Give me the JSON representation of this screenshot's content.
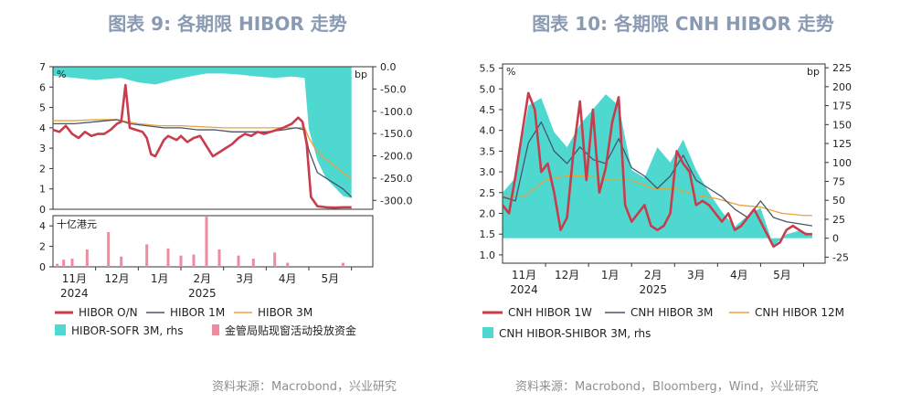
{
  "charts": [
    {
      "title": "图表 9:  各期限 HIBOR 走势",
      "source": "资料来源：Macrobond，兴业研究",
      "left_unit": "%",
      "right_unit": "bp",
      "bottom_unit": "十亿港元",
      "x_months": [
        "11月",
        "12月",
        "1月",
        "2月",
        "3月",
        "4月",
        "5月"
      ],
      "x_years": [
        "2024",
        "2025"
      ],
      "left_ticks": [
        "0",
        "1",
        "2",
        "3",
        "4",
        "5",
        "6",
        "7"
      ],
      "right_ticks": [
        "0.0",
        "-50.0",
        "-100.0",
        "-150.0",
        "-200.0",
        "-250.0",
        "-300.0"
      ],
      "bottom_ticks": [
        "0",
        "2",
        "4"
      ],
      "legend": [
        "HIBOR O/N",
        "HIBOR 1M",
        "HIBOR 3M",
        "HIBOR-SOFR 3M, rhs",
        "金管局贴现窗活动投放资金"
      ],
      "colors": {
        "on": "#c83c4c",
        "m1": "#4a5568",
        "m3": "#e8a23a",
        "spread": "#4ed8cf",
        "bar": "#f08aa0"
      }
    },
    {
      "title": "图表 10: 各期限 CNH HIBOR 走势",
      "source": "资料来源：Macrobond，Bloomberg，Wind，兴业研究",
      "left_unit": "%",
      "right_unit": "bp",
      "x_months": [
        "11月",
        "12月",
        "1月",
        "2月",
        "3月",
        "4月",
        "5月"
      ],
      "x_years": [
        "2024",
        "2025"
      ],
      "left_ticks": [
        "1.0",
        "1.5",
        "2.0",
        "2.5",
        "3.0",
        "3.5",
        "4.0",
        "4.5",
        "5.0",
        "5.5"
      ],
      "right_ticks": [
        "-25",
        "0",
        "25",
        "50",
        "75",
        "100",
        "125",
        "150",
        "175",
        "200",
        "225"
      ],
      "legend": [
        "CNH HIBOR 1W",
        "CNH HIBOR 3M",
        "CNH HIBOR 12M",
        "CNH HIBOR-SHIBOR 3M, rhs"
      ],
      "colors": {
        "w1": "#c83c4c",
        "m3": "#4a5568",
        "m12": "#e8a23a",
        "spread": "#4ed8cf"
      }
    }
  ],
  "chart_data": [
    {
      "type": "line",
      "x_unit": "months since 2024-10-20",
      "x_range": [
        0,
        7.5
      ],
      "ylim_left": [
        0,
        7
      ],
      "ylim_right": [
        -320,
        0
      ],
      "ylim_bottom": [
        0,
        5
      ],
      "series": [
        {
          "name": "HIBOR O/N",
          "axis": "left",
          "x": [
            0,
            0.15,
            0.3,
            0.45,
            0.6,
            0.75,
            0.9,
            1.05,
            1.2,
            1.35,
            1.5,
            1.6,
            1.7,
            1.8,
            1.95,
            2.1,
            2.2,
            2.3,
            2.4,
            2.5,
            2.6,
            2.7,
            2.8,
            2.9,
            3.0,
            3.15,
            3.3,
            3.45,
            3.6,
            3.75,
            3.9,
            4.05,
            4.2,
            4.35,
            4.5,
            4.65,
            4.8,
            4.95,
            5.1,
            5.25,
            5.4,
            5.5,
            5.6,
            5.75,
            5.85,
            5.95,
            6.05,
            6.2,
            6.4,
            6.6,
            6.8,
            7.0
          ],
          "y": [
            3.9,
            3.8,
            4.1,
            3.7,
            3.5,
            3.8,
            3.6,
            3.7,
            3.7,
            3.9,
            4.2,
            4.3,
            6.1,
            4.0,
            3.9,
            3.8,
            3.5,
            2.7,
            2.6,
            3.0,
            3.4,
            3.6,
            3.5,
            3.4,
            3.6,
            3.3,
            3.5,
            3.6,
            3.1,
            2.6,
            2.8,
            3.0,
            3.2,
            3.5,
            3.7,
            3.6,
            3.8,
            3.7,
            3.8,
            3.9,
            4.0,
            4.1,
            4.2,
            4.5,
            4.3,
            3.2,
            0.6,
            0.15,
            0.1,
            0.08,
            0.1,
            0.1
          ]
        },
        {
          "name": "HIBOR 1M",
          "axis": "left",
          "x": [
            0,
            0.5,
            1.0,
            1.5,
            1.8,
            2.2,
            2.6,
            3.0,
            3.4,
            3.8,
            4.2,
            4.6,
            5.0,
            5.4,
            5.7,
            5.9,
            6.0,
            6.2,
            6.5,
            6.8,
            7.0
          ],
          "y": [
            4.2,
            4.2,
            4.3,
            4.4,
            4.2,
            4.1,
            4.0,
            4.0,
            3.9,
            3.9,
            3.8,
            3.8,
            3.8,
            3.9,
            4.0,
            3.9,
            2.9,
            1.8,
            1.4,
            1.0,
            0.6
          ]
        },
        {
          "name": "HIBOR 3M",
          "axis": "left",
          "x": [
            0,
            0.5,
            1.0,
            1.5,
            2.0,
            2.5,
            3.0,
            3.5,
            4.0,
            4.5,
            5.0,
            5.5,
            5.9,
            6.0,
            6.2,
            6.5,
            6.8,
            7.0
          ],
          "y": [
            4.35,
            4.35,
            4.4,
            4.4,
            4.2,
            4.1,
            4.1,
            4.05,
            4.0,
            4.0,
            4.0,
            4.0,
            4.0,
            3.5,
            2.8,
            2.3,
            1.8,
            1.5
          ]
        },
        {
          "name": "HIBOR-SOFR 3M, rhs",
          "axis": "right",
          "type": "area",
          "x": [
            0,
            0.5,
            1.0,
            1.2,
            1.6,
            2.0,
            2.4,
            2.8,
            3.2,
            3.6,
            4.0,
            4.4,
            4.8,
            5.2,
            5.6,
            5.9,
            6.0,
            6.2,
            6.4,
            6.6,
            6.8,
            7.0
          ],
          "y": [
            -20,
            -25,
            -30,
            -28,
            -25,
            -35,
            -40,
            -30,
            -22,
            -15,
            -15,
            -18,
            -22,
            -25,
            -22,
            -25,
            -140,
            -210,
            -250,
            -270,
            -290,
            -295
          ]
        },
        {
          "name": "金管局贴现窗活动投放资金",
          "axis": "bottom",
          "type": "bar",
          "x": [
            0.1,
            0.25,
            0.45,
            0.8,
            1.3,
            1.6,
            2.2,
            2.7,
            3.0,
            3.3,
            3.6,
            3.9,
            4.35,
            4.7,
            5.2,
            5.5,
            6.8
          ],
          "y": [
            0.3,
            0.7,
            0.8,
            1.7,
            3.4,
            1.0,
            2.2,
            1.8,
            1.1,
            1.2,
            4.9,
            1.7,
            1.1,
            0.8,
            1.4,
            0.4,
            0.4
          ]
        }
      ]
    },
    {
      "type": "line",
      "x_unit": "months since 2024-10-20",
      "x_range": [
        0,
        7.5
      ],
      "ylim_left": [
        0.8,
        5.6
      ],
      "ylim_right": [
        -33,
        230
      ],
      "series": [
        {
          "name": "CNH HIBOR 1W",
          "axis": "left",
          "x": [
            0,
            0.15,
            0.3,
            0.45,
            0.6,
            0.75,
            0.9,
            1.05,
            1.2,
            1.35,
            1.5,
            1.65,
            1.8,
            1.95,
            2.1,
            2.25,
            2.4,
            2.55,
            2.7,
            2.85,
            3.0,
            3.15,
            3.3,
            3.45,
            3.6,
            3.75,
            3.9,
            4.05,
            4.2,
            4.35,
            4.5,
            4.65,
            4.8,
            4.95,
            5.1,
            5.25,
            5.4,
            5.55,
            5.7,
            5.85,
            6.0,
            6.15,
            6.3,
            6.45,
            6.6,
            6.75,
            6.9,
            7.05,
            7.2
          ],
          "y": [
            2.2,
            2.0,
            2.9,
            3.9,
            4.9,
            4.5,
            3.0,
            3.2,
            2.5,
            1.6,
            1.9,
            3.5,
            4.7,
            2.8,
            4.5,
            2.5,
            3.1,
            4.2,
            4.8,
            2.2,
            1.8,
            2.0,
            2.2,
            1.7,
            1.6,
            1.7,
            2.0,
            3.5,
            3.2,
            3.0,
            2.2,
            2.3,
            2.2,
            2.0,
            1.8,
            2.0,
            1.6,
            1.7,
            1.9,
            2.1,
            1.8,
            1.5,
            1.2,
            1.3,
            1.6,
            1.7,
            1.6,
            1.5,
            1.5
          ]
        },
        {
          "name": "CNH HIBOR 3M",
          "axis": "left",
          "x": [
            0,
            0.3,
            0.6,
            0.9,
            1.2,
            1.5,
            1.8,
            2.1,
            2.4,
            2.7,
            3.0,
            3.3,
            3.6,
            3.9,
            4.2,
            4.5,
            4.8,
            5.1,
            5.4,
            5.7,
            6.0,
            6.3,
            6.6,
            6.9,
            7.2
          ],
          "y": [
            2.4,
            2.3,
            3.7,
            4.2,
            3.5,
            3.2,
            3.6,
            3.3,
            3.2,
            3.8,
            3.1,
            2.9,
            2.6,
            2.9,
            3.4,
            2.8,
            2.6,
            2.4,
            2.1,
            1.9,
            2.3,
            1.9,
            1.8,
            1.75,
            1.7
          ]
        },
        {
          "name": "CNH HIBOR 12M",
          "axis": "left",
          "x": [
            0,
            0.5,
            1.0,
            1.5,
            2.0,
            2.5,
            3.0,
            3.5,
            4.0,
            4.5,
            5.0,
            5.5,
            6.0,
            6.5,
            7.0,
            7.2
          ],
          "y": [
            2.4,
            2.4,
            2.8,
            2.9,
            2.9,
            2.8,
            2.8,
            2.6,
            2.6,
            2.45,
            2.35,
            2.2,
            2.15,
            2.0,
            1.95,
            1.95
          ]
        },
        {
          "name": "CNH HIBOR-SHIBOR 3M, rhs",
          "axis": "right",
          "type": "area",
          "x": [
            0,
            0.3,
            0.6,
            0.9,
            1.2,
            1.5,
            1.8,
            2.1,
            2.4,
            2.7,
            3.0,
            3.3,
            3.6,
            3.9,
            4.2,
            4.5,
            4.8,
            5.1,
            5.4,
            5.7,
            6.0,
            6.3,
            6.6,
            6.9,
            7.2
          ],
          "y": [
            60,
            80,
            175,
            185,
            140,
            120,
            150,
            170,
            190,
            175,
            90,
            80,
            120,
            100,
            130,
            90,
            60,
            35,
            15,
            30,
            40,
            -10,
            5,
            10,
            5
          ]
        }
      ]
    }
  ]
}
